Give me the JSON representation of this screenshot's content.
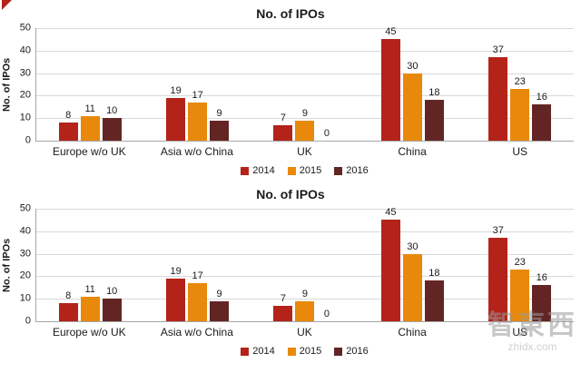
{
  "watermark": {
    "text": "智東西",
    "subtext": "zhidx.com"
  },
  "chart_data": [
    {
      "type": "bar",
      "title": "No. of IPOs",
      "xlabel": "",
      "ylabel": "No. of IPOs",
      "categories": [
        "Europe w/o UK",
        "Asia w/o China",
        "UK",
        "China",
        "US"
      ],
      "series": [
        {
          "name": "2014",
          "color": "#b3231a",
          "values": [
            8,
            19,
            7,
            45,
            37
          ]
        },
        {
          "name": "2015",
          "color": "#e8890b",
          "values": [
            11,
            17,
            9,
            30,
            23
          ]
        },
        {
          "name": "2016",
          "color": "#632523",
          "values": [
            10,
            9,
            0,
            18,
            16
          ]
        }
      ],
      "ylim": [
        0,
        50
      ],
      "yticks": [
        0,
        10,
        20,
        30,
        40,
        50
      ],
      "grid": true,
      "legend_position": "bottom",
      "data_labels": true
    },
    {
      "type": "bar",
      "title": "No. of IPOs",
      "xlabel": "",
      "ylabel": "No. of IPOs",
      "categories": [
        "Europe w/o UK",
        "Asia w/o China",
        "UK",
        "China",
        "US"
      ],
      "series": [
        {
          "name": "2014",
          "color": "#b3231a",
          "values": [
            8,
            19,
            7,
            45,
            37
          ]
        },
        {
          "name": "2015",
          "color": "#e8890b",
          "values": [
            11,
            17,
            9,
            30,
            23
          ]
        },
        {
          "name": "2016",
          "color": "#632523",
          "values": [
            10,
            9,
            0,
            18,
            16
          ]
        }
      ],
      "ylim": [
        0,
        50
      ],
      "yticks": [
        0,
        10,
        20,
        30,
        40,
        50
      ],
      "grid": true,
      "legend_position": "bottom",
      "data_labels": true
    }
  ]
}
